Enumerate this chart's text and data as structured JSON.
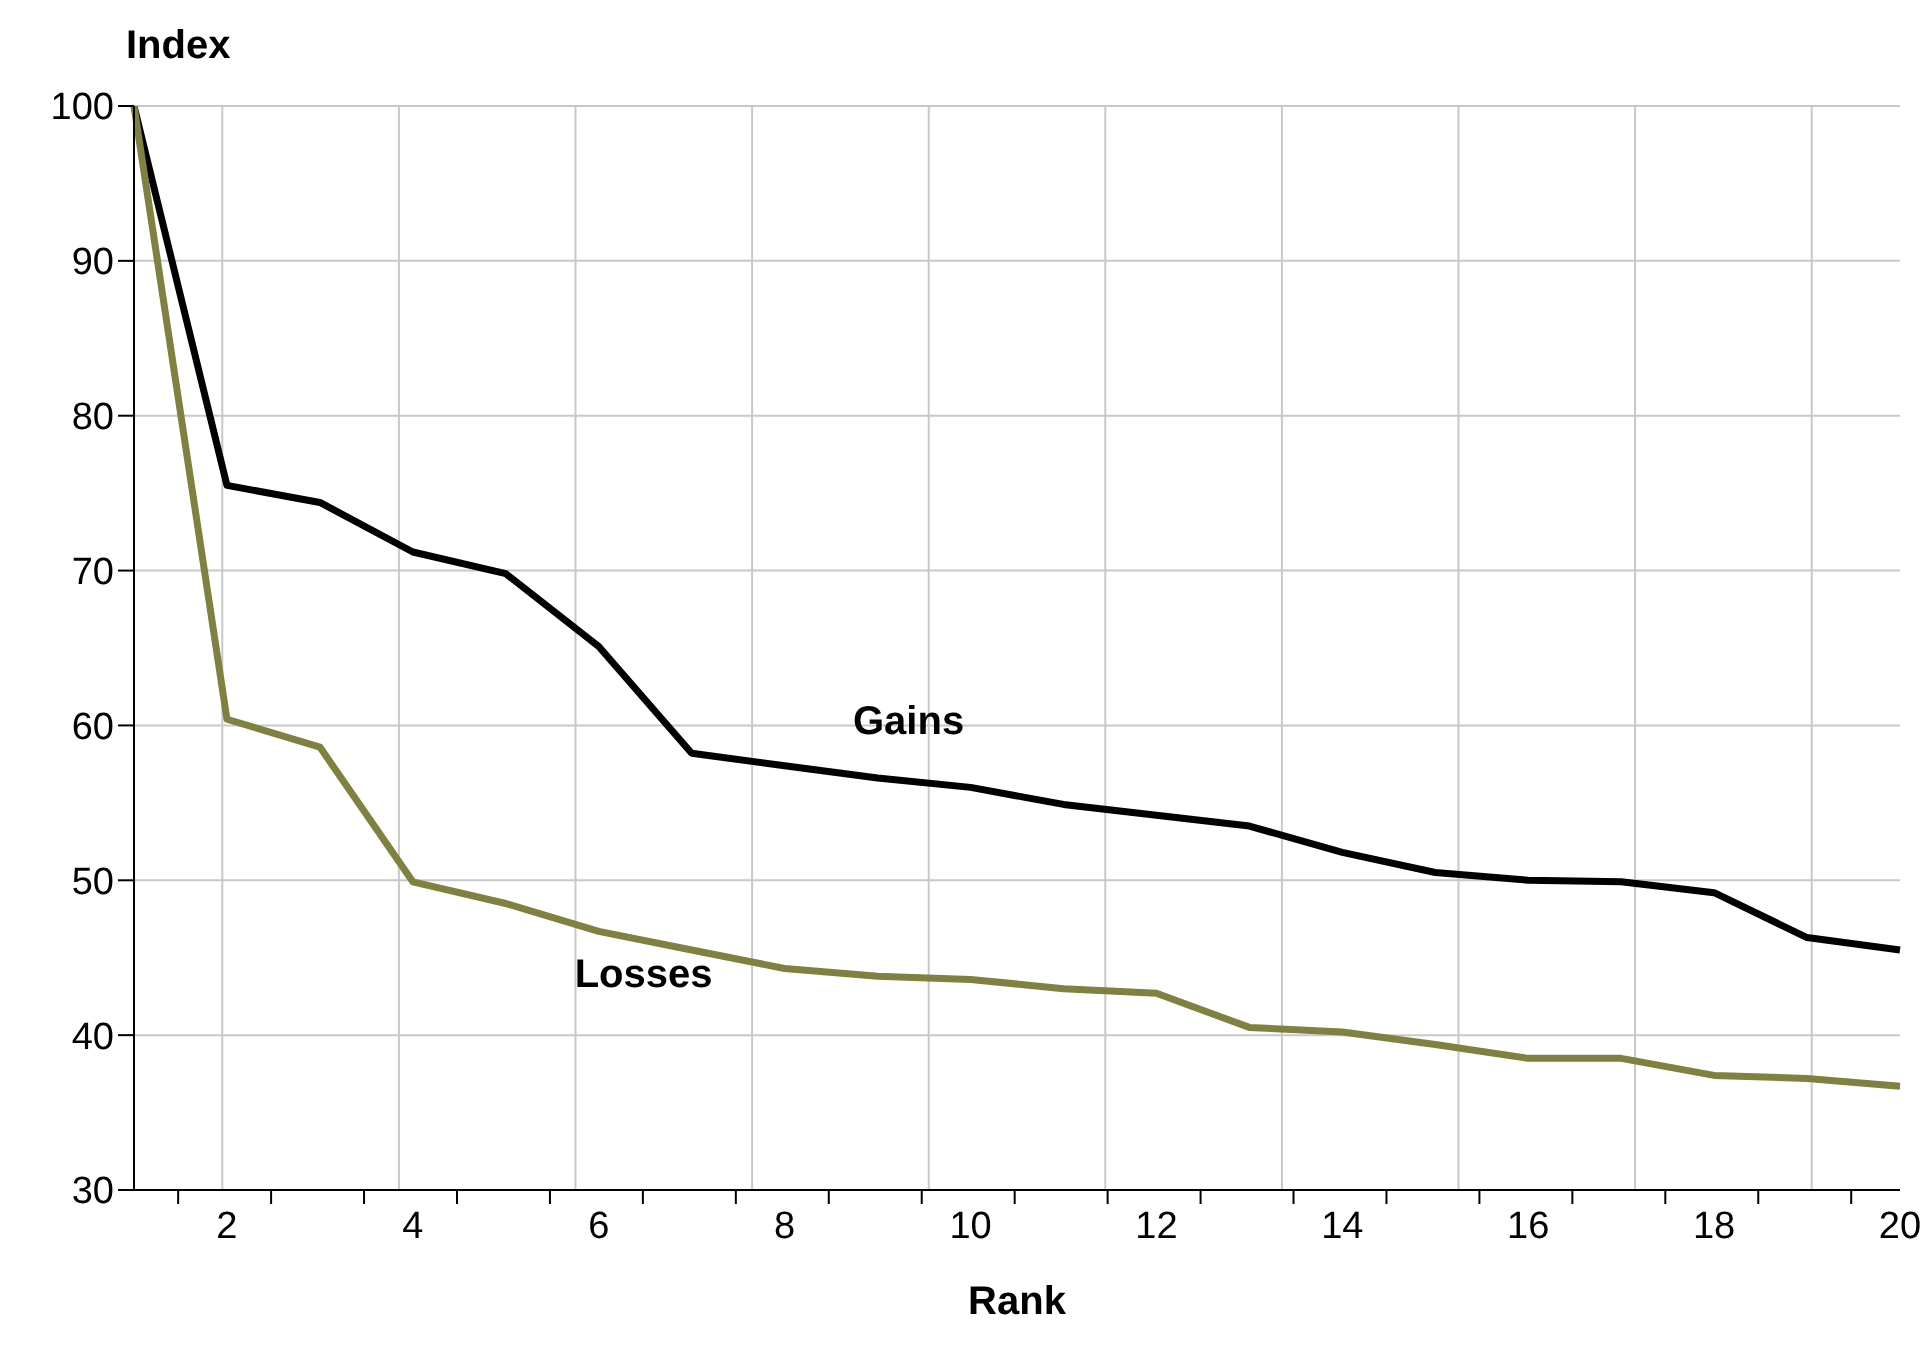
{
  "chart_data": {
    "type": "line",
    "xlabel": "Rank",
    "ylabel": "Index",
    "categories": [
      null,
      "2",
      null,
      "4",
      null,
      "6",
      null,
      "8",
      null,
      "10",
      null,
      "12",
      null,
      "14",
      null,
      "16",
      null,
      "18",
      null,
      "20"
    ],
    "series": [
      {
        "name": "Gains",
        "color": "#000000",
        "values": [
          100,
          75.5,
          74.4,
          71.2,
          69.8,
          65.1,
          58.2,
          57.4,
          56.6,
          56,
          54.9,
          54.2,
          53.5,
          51.8,
          50.5,
          50,
          49.9,
          49.2,
          46.3,
          45.5
        ]
      },
      {
        "name": "Losses",
        "color": "#808040",
        "values": [
          100,
          60.4,
          58.6,
          49.9,
          48.5,
          46.7,
          45.5,
          44.3,
          43.8,
          43.6,
          43,
          42.7,
          40.5,
          40.2,
          39.4,
          38.5,
          38.5,
          37.4,
          37.2,
          36.7
        ]
      }
    ],
    "ylim": [
      30,
      100
    ],
    "yticks": [
      30,
      40,
      50,
      60,
      70,
      80,
      90,
      100
    ],
    "grid": true,
    "marker": "none",
    "line_style": "solid"
  }
}
